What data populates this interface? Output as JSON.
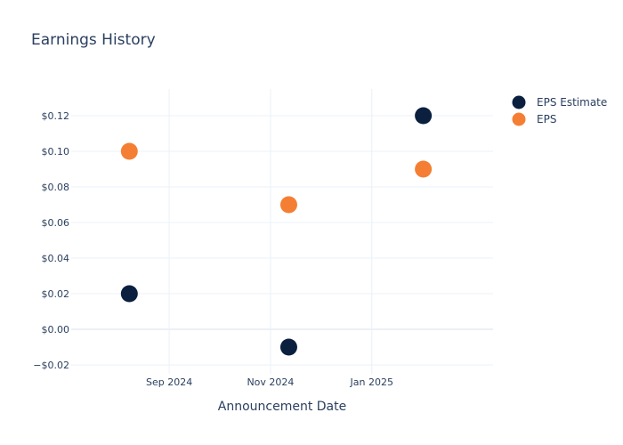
{
  "chart_data": {
    "type": "scatter",
    "title": "Earnings History",
    "xlabel": "Announcement Date",
    "ylabel": "",
    "x_range": [
      "2024-07-04",
      "2025-03-15"
    ],
    "x_ticks": [
      {
        "date": "2024-09-01",
        "label": "Sep 2024"
      },
      {
        "date": "2024-11-01",
        "label": "Nov 2024"
      },
      {
        "date": "2025-01-01",
        "label": "Jan 2025"
      }
    ],
    "ylim": [
      -0.025,
      0.135
    ],
    "y_ticks": [
      {
        "value": -0.02,
        "label": "−$0.02"
      },
      {
        "value": 0.0,
        "label": "$0.00"
      },
      {
        "value": 0.02,
        "label": "$0.02"
      },
      {
        "value": 0.04,
        "label": "$0.04"
      },
      {
        "value": 0.06,
        "label": "$0.06"
      },
      {
        "value": 0.08,
        "label": "$0.08"
      },
      {
        "value": 0.1,
        "label": "$0.10"
      },
      {
        "value": 0.12,
        "label": "$0.12"
      }
    ],
    "grid": true,
    "legend_position": "top-right",
    "series": [
      {
        "name": "EPS Estimate",
        "color": "#0b1f3f",
        "points": [
          {
            "x": "2024-08-08",
            "y": 0.02
          },
          {
            "x": "2024-11-12",
            "y": -0.01
          },
          {
            "x": "2025-02-01",
            "y": 0.12
          }
        ]
      },
      {
        "name": "EPS",
        "color": "#f47f34",
        "points": [
          {
            "x": "2024-08-08",
            "y": 0.1
          },
          {
            "x": "2024-11-12",
            "y": 0.07
          },
          {
            "x": "2025-02-01",
            "y": 0.09
          }
        ]
      }
    ]
  }
}
